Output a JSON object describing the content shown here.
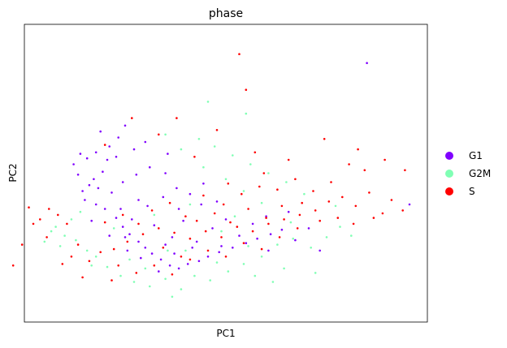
{
  "chart_data": {
    "type": "scatter",
    "title": "phase",
    "xlabel": "PC1",
    "ylabel": "PC2",
    "xlim": [
      -6,
      12
    ],
    "ylim": [
      -6,
      14
    ],
    "ticks_visible": false,
    "grid": false,
    "legend_placement": "right-outside",
    "series": [
      {
        "name": "G1",
        "color": "#8000ff",
        "points": [
          [
            -3.1,
            3.2
          ],
          [
            -3.4,
            2.8
          ],
          [
            -2.9,
            3.6
          ],
          [
            -3.6,
            3.9
          ],
          [
            -2.5,
            4.1
          ],
          [
            -3.8,
            4.6
          ],
          [
            -3.2,
            5.0
          ],
          [
            -2.8,
            5.4
          ],
          [
            -2.2,
            5.8
          ],
          [
            -1.8,
            6.4
          ],
          [
            -2.6,
            6.8
          ],
          [
            -1.5,
            7.2
          ],
          [
            -3.3,
            2.2
          ],
          [
            -2.4,
            1.6
          ],
          [
            -1.9,
            1.0
          ],
          [
            -1.6,
            0.4
          ],
          [
            -1.3,
            -0.1
          ],
          [
            -0.9,
            -0.6
          ],
          [
            -0.6,
            -1.0
          ],
          [
            -0.3,
            -1.4
          ],
          [
            0.1,
            -1.8
          ],
          [
            0.5,
            -2.2
          ],
          [
            0.9,
            -2.4
          ],
          [
            1.3,
            -2.1
          ],
          [
            1.8,
            -1.9
          ],
          [
            2.2,
            -1.6
          ],
          [
            2.7,
            -1.3
          ],
          [
            3.3,
            -1.0
          ],
          [
            3.9,
            -0.7
          ],
          [
            4.4,
            -0.4
          ],
          [
            5.0,
            -0.1
          ],
          [
            5.5,
            0.2
          ],
          [
            6.1,
            -0.5
          ],
          [
            6.7,
            0.3
          ],
          [
            7.2,
            -1.2
          ],
          [
            -0.5,
            1.8
          ],
          [
            0.2,
            2.4
          ],
          [
            0.8,
            3.0
          ],
          [
            1.4,
            2.6
          ],
          [
            2.0,
            3.3
          ],
          [
            2.6,
            2.1
          ],
          [
            -1.0,
            3.9
          ],
          [
            -0.4,
            4.4
          ],
          [
            0.3,
            4.0
          ],
          [
            -2.1,
            2.7
          ],
          [
            -1.6,
            3.4
          ],
          [
            -2.8,
            1.9
          ],
          [
            -1.2,
            0.9
          ],
          [
            -0.2,
            0.5
          ],
          [
            0.6,
            -0.3
          ],
          [
            1.1,
            0.8
          ],
          [
            1.7,
            -0.6
          ],
          [
            2.4,
            0.3
          ],
          [
            3.0,
            0.9
          ],
          [
            3.6,
            -0.2
          ],
          [
            4.2,
            0.6
          ],
          [
            4.8,
            1.1
          ],
          [
            -3.0,
            0.8
          ],
          [
            -2.2,
            -0.2
          ],
          [
            -1.4,
            -1.2
          ],
          [
            -0.8,
            -1.7
          ],
          [
            0.0,
            -2.6
          ],
          [
            0.7,
            -1.4
          ],
          [
            1.5,
            -1.0
          ],
          [
            -1.9,
            5.1
          ],
          [
            -1.1,
            5.6
          ],
          [
            -0.6,
            6.1
          ],
          [
            0.4,
            5.3
          ],
          [
            -2.3,
            4.9
          ],
          [
            -3.5,
            5.3
          ],
          [
            11.2,
            1.9
          ],
          [
            9.3,
            11.4
          ],
          [
            -1.7,
            1.6
          ],
          [
            -2.7,
            3.0
          ],
          [
            -0.9,
            2.2
          ],
          [
            0.9,
            1.6
          ],
          [
            2.8,
            -0.9
          ],
          [
            4.9,
            -1.2
          ],
          [
            5.8,
            1.4
          ],
          [
            -1.5,
            -0.3
          ],
          [
            0.3,
            -0.8
          ],
          [
            1.9,
            1.9
          ]
        ]
      },
      {
        "name": "G2M",
        "color": "#80ffb4",
        "points": [
          [
            -4.2,
            -0.2
          ],
          [
            -4.6,
            0.4
          ],
          [
            -3.9,
            0.9
          ],
          [
            -4.4,
            -0.9
          ],
          [
            -3.7,
            -0.5
          ],
          [
            -3.2,
            -1.2
          ],
          [
            -4.8,
            0.1
          ],
          [
            -5.1,
            -0.6
          ],
          [
            -3.5,
            1.4
          ],
          [
            -2.8,
            -1.6
          ],
          [
            -2.3,
            -2.3
          ],
          [
            -1.7,
            -2.9
          ],
          [
            -1.1,
            -3.3
          ],
          [
            -0.4,
            -3.6
          ],
          [
            0.3,
            -3.1
          ],
          [
            1.0,
            -3.8
          ],
          [
            1.6,
            -2.9
          ],
          [
            2.3,
            -3.2
          ],
          [
            3.1,
            -2.6
          ],
          [
            3.8,
            -2.1
          ],
          [
            4.6,
            -1.6
          ],
          [
            5.3,
            -0.8
          ],
          [
            6.0,
            -0.4
          ],
          [
            6.8,
            -1.0
          ],
          [
            7.5,
            -0.3
          ],
          [
            8.1,
            0.4
          ],
          [
            8.6,
            -0.2
          ],
          [
            7.9,
            1.8
          ],
          [
            6.5,
            2.6
          ],
          [
            5.7,
            3.4
          ],
          [
            4.9,
            4.0
          ],
          [
            4.1,
            4.6
          ],
          [
            3.3,
            5.2
          ],
          [
            2.5,
            5.8
          ],
          [
            1.8,
            6.3
          ],
          [
            1.0,
            5.6
          ],
          [
            0.3,
            6.6
          ],
          [
            2.0,
            4.4
          ],
          [
            3.0,
            3.6
          ],
          [
            3.8,
            2.8
          ],
          [
            4.6,
            2.0
          ],
          [
            2.2,
            8.8
          ],
          [
            3.9,
            8.0
          ],
          [
            1.2,
            -1.2
          ],
          [
            2.8,
            0.1
          ],
          [
            4.0,
            -0.9
          ],
          [
            5.9,
            0.7
          ],
          [
            -0.6,
            -2.4
          ],
          [
            0.4,
            -1.2
          ],
          [
            2.6,
            -2.0
          ],
          [
            4.3,
            -2.9
          ],
          [
            5.6,
            -2.4
          ],
          [
            -1.3,
            -1.8
          ],
          [
            -2.0,
            0.3
          ],
          [
            -0.2,
            1.2
          ],
          [
            1.4,
            1.9
          ],
          [
            3.4,
            1.1
          ],
          [
            -3.0,
            -2.2
          ],
          [
            0.6,
            -4.3
          ],
          [
            7.0,
            -2.7
          ],
          [
            5.1,
            -3.3
          ]
        ]
      },
      {
        "name": "S",
        "color": "#ff0000",
        "points": [
          [
            -4.9,
            1.6
          ],
          [
            -5.3,
            0.9
          ],
          [
            -4.5,
            1.2
          ],
          [
            -5.0,
            -0.3
          ],
          [
            -4.1,
            0.6
          ],
          [
            -3.6,
            -0.8
          ],
          [
            -3.1,
            -1.9
          ],
          [
            -2.6,
            -1.3
          ],
          [
            -3.9,
            -1.6
          ],
          [
            -4.3,
            -2.1
          ],
          [
            -5.6,
            0.6
          ],
          [
            -6.1,
            -0.8
          ],
          [
            -2.0,
            -1.1
          ],
          [
            -1.4,
            -0.6
          ],
          [
            -0.7,
            -0.1
          ],
          [
            0.0,
            0.3
          ],
          [
            0.7,
            0.0
          ],
          [
            1.4,
            -0.4
          ],
          [
            2.1,
            0.1
          ],
          [
            2.8,
            -0.3
          ],
          [
            3.5,
            0.4
          ],
          [
            4.2,
            0.1
          ],
          [
            4.9,
            0.6
          ],
          [
            5.6,
            0.9
          ],
          [
            6.3,
            1.2
          ],
          [
            7.0,
            1.5
          ],
          [
            7.6,
            2.1
          ],
          [
            8.2,
            2.4
          ],
          [
            8.8,
            1.8
          ],
          [
            9.4,
            2.7
          ],
          [
            10.0,
            1.3
          ],
          [
            10.4,
            2.2
          ],
          [
            -0.3,
            1.5
          ],
          [
            0.5,
            2.0
          ],
          [
            1.2,
            1.1
          ],
          [
            2.0,
            2.5
          ],
          [
            2.9,
            1.9
          ],
          [
            3.7,
            2.6
          ],
          [
            4.5,
            3.1
          ],
          [
            5.3,
            2.9
          ],
          [
            6.1,
            3.6
          ],
          [
            6.9,
            2.8
          ],
          [
            7.7,
            3.4
          ],
          [
            8.5,
            4.6
          ],
          [
            9.2,
            4.2
          ],
          [
            7.4,
            6.3
          ],
          [
            8.9,
            5.6
          ],
          [
            10.1,
            4.9
          ],
          [
            5.8,
            4.9
          ],
          [
            4.3,
            5.4
          ],
          [
            2.6,
            6.9
          ],
          [
            0.8,
            7.7
          ],
          [
            -1.8,
            -2.2
          ],
          [
            -1.0,
            -2.7
          ],
          [
            -0.2,
            -2.2
          ],
          [
            0.6,
            -2.8
          ],
          [
            1.4,
            -1.8
          ],
          [
            2.2,
            -1.2
          ],
          [
            3.0,
            -1.6
          ],
          [
            3.8,
            -0.7
          ],
          [
            4.6,
            -1.1
          ],
          [
            5.4,
            -0.3
          ],
          [
            6.2,
            0.3
          ],
          [
            -2.4,
            0.7
          ],
          [
            -1.6,
            1.2
          ],
          [
            -0.9,
            0.6
          ],
          [
            0.2,
            -1.0
          ],
          [
            1.0,
            -1.6
          ],
          [
            1.7,
            0.8
          ],
          [
            2.5,
            1.3
          ],
          [
            3.2,
            0.7
          ],
          [
            4.0,
            1.6
          ],
          [
            4.8,
            1.0
          ],
          [
            5.5,
            1.8
          ],
          [
            6.4,
            2.0
          ],
          [
            7.2,
            0.8
          ],
          [
            8.0,
            1.0
          ],
          [
            8.7,
            0.6
          ],
          [
            9.6,
            1.0
          ],
          [
            -3.4,
            -3.0
          ],
          [
            -2.1,
            -3.2
          ],
          [
            -5.8,
            1.7
          ],
          [
            3.9,
            9.6
          ],
          [
            3.6,
            12.0
          ],
          [
            10.9,
            1.5
          ],
          [
            11.0,
            4.2
          ],
          [
            -6.5,
            -2.2
          ],
          [
            -1.2,
            7.7
          ],
          [
            0.0,
            6.6
          ],
          [
            1.6,
            5.1
          ],
          [
            -2.4,
            5.9
          ],
          [
            3.1,
            3.3
          ],
          [
            4.7,
            4.0
          ]
        ]
      }
    ]
  }
}
